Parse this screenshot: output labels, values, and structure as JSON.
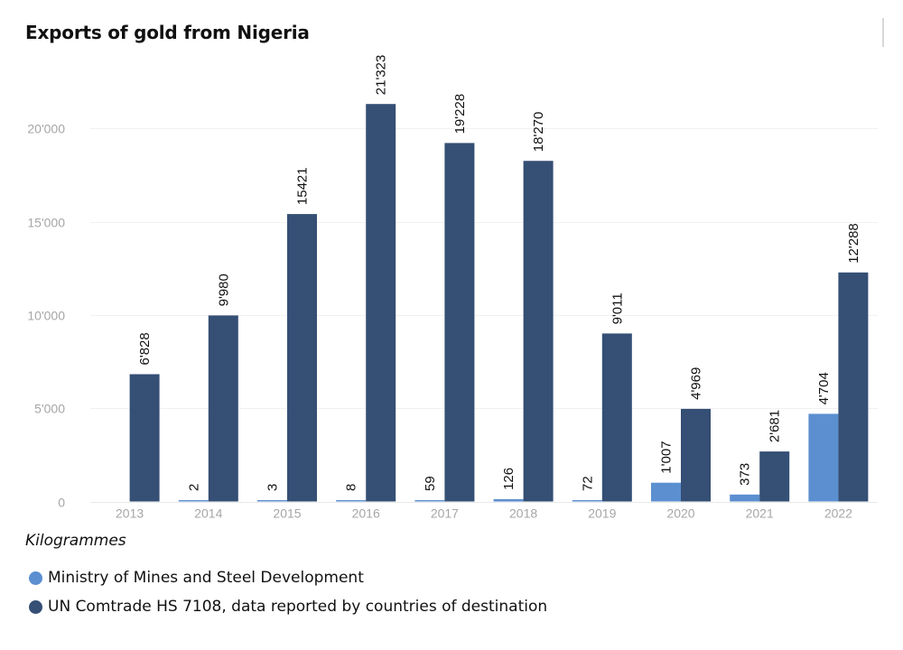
{
  "chart_data": {
    "type": "bar",
    "title": "Exports of gold from Nigeria",
    "unit_label": "Kilogrammes",
    "categories": [
      "2013",
      "2014",
      "2015",
      "2016",
      "2017",
      "2018",
      "2019",
      "2020",
      "2021",
      "2022"
    ],
    "series": [
      {
        "name": "Ministry of Mines and Steel Development",
        "color": "#5b8fd0",
        "values": [
          null,
          2,
          3,
          8,
          59,
          126,
          72,
          1007,
          373,
          4704
        ],
        "labels": [
          "",
          "2",
          "3",
          "8",
          "59",
          "126",
          "72",
          "1'007",
          "373",
          "4'704"
        ]
      },
      {
        "name": "UN Comtrade HS 7108, data reported by countries of destination",
        "color": "#354f75",
        "values": [
          6828,
          9980,
          15421,
          21323,
          19228,
          18270,
          9011,
          4969,
          2681,
          12288
        ],
        "labels": [
          "6'828",
          "9'980",
          "15421",
          "21'323",
          "19'228",
          "18'270",
          "9'011",
          "4'969",
          "2'681",
          "12'288"
        ]
      }
    ],
    "yticks": [
      0,
      5000,
      10000,
      15000,
      20000
    ],
    "ytick_labels": [
      "0",
      "5'000",
      "10'000",
      "15'000",
      "20'000"
    ],
    "ylim": [
      0,
      21500
    ],
    "grid": true,
    "legend_position": "bottom-left"
  }
}
